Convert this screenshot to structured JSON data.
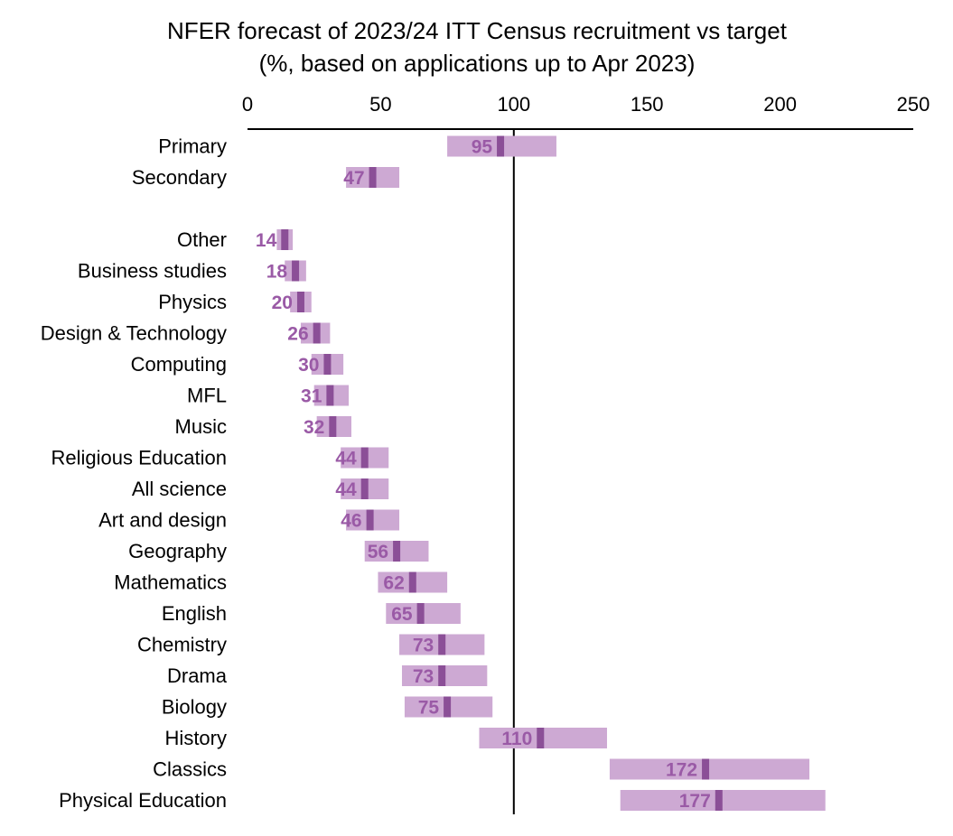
{
  "chart_data": {
    "type": "bar",
    "subtype": "range-with-point-estimate",
    "title": "NFER forecast of 2023/24 ITT Census recruitment vs target",
    "subtitle": "(%, based on applications up to Apr 2023)",
    "xlabel": "",
    "ylabel": "",
    "xlim": [
      0,
      250
    ],
    "xticks": [
      0,
      50,
      100,
      150,
      200,
      250
    ],
    "xtick_labels": [
      "0",
      "50",
      "100",
      "150",
      "200",
      "250"
    ],
    "target_line": 100,
    "colors": {
      "range": "#cda9d3",
      "point": "#8b4f97",
      "label": "#9a5aa6",
      "axis": "#000000"
    },
    "groups": [
      {
        "items": [
          {
            "category": "Primary",
            "value": 95,
            "low": 75,
            "high": 116
          },
          {
            "category": "Secondary",
            "value": 47,
            "low": 37,
            "high": 57
          }
        ]
      },
      {
        "items": [
          {
            "category": "Other",
            "value": 14,
            "low": 11,
            "high": 17
          },
          {
            "category": "Business studies",
            "value": 18,
            "low": 14,
            "high": 22
          },
          {
            "category": "Physics",
            "value": 20,
            "low": 16,
            "high": 24
          },
          {
            "category": "Design & Technology",
            "value": 26,
            "low": 20,
            "high": 31
          },
          {
            "category": "Computing",
            "value": 30,
            "low": 24,
            "high": 36
          },
          {
            "category": "MFL",
            "value": 31,
            "low": 25,
            "high": 38
          },
          {
            "category": "Music",
            "value": 32,
            "low": 26,
            "high": 39
          },
          {
            "category": "Religious Education",
            "value": 44,
            "low": 35,
            "high": 53
          },
          {
            "category": "All science",
            "value": 44,
            "low": 35,
            "high": 53
          },
          {
            "category": "Art and design",
            "value": 46,
            "low": 37,
            "high": 57
          },
          {
            "category": "Geography",
            "value": 56,
            "low": 44,
            "high": 68
          },
          {
            "category": "Mathematics",
            "value": 62,
            "low": 49,
            "high": 75
          },
          {
            "category": "English",
            "value": 65,
            "low": 52,
            "high": 80
          },
          {
            "category": "Chemistry",
            "value": 73,
            "low": 57,
            "high": 89
          },
          {
            "category": "Drama",
            "value": 73,
            "low": 58,
            "high": 90
          },
          {
            "category": "Biology",
            "value": 75,
            "low": 59,
            "high": 92
          },
          {
            "category": "History",
            "value": 110,
            "low": 87,
            "high": 135
          },
          {
            "category": "Classics",
            "value": 172,
            "low": 136,
            "high": 211
          },
          {
            "category": "Physical Education",
            "value": 177,
            "low": 140,
            "high": 217
          }
        ]
      }
    ]
  }
}
